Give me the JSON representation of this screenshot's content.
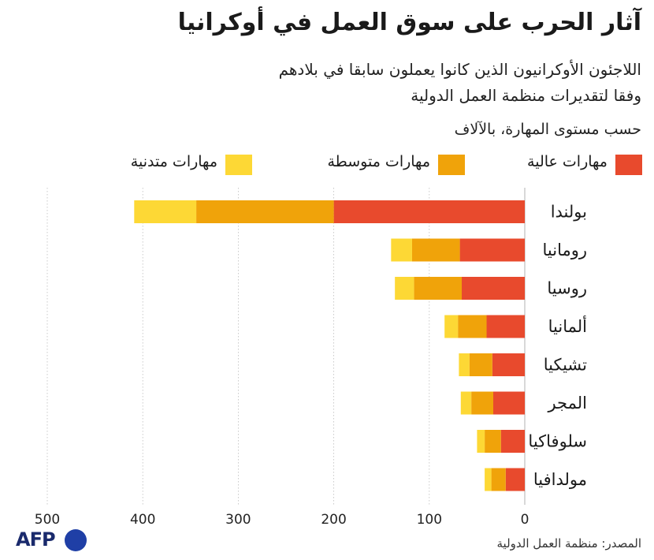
{
  "title": "آثار الحرب على سوق العمل في أوكرانيا",
  "subtitle_line1": "اللاجئون الأوكرانيون الذين كانوا يعملون سابقا في بلادهم",
  "subtitle_line2": "وفقا لتقديرات منظمة العمل الدولية",
  "unit": "حسب مستوى المهارة، بالآلاف",
  "source": "المصدر: منظمة العمل الدولية",
  "logo": "AFP",
  "colors": {
    "high": "#e84a2d",
    "medium": "#f0a30a",
    "low": "#fdd835",
    "grid": "#bdbdbd"
  },
  "chart_data": {
    "type": "bar",
    "orientation": "horizontal",
    "stacked": true,
    "x_direction": "right-to-left",
    "categories": [
      "بولندا",
      "رومانيا",
      "روسيا",
      "ألمانيا",
      "تشيكيا",
      "المجر",
      "سلوفاكيا",
      "مولدافيا"
    ],
    "series": [
      {
        "name": "مهارات عالية",
        "key": "high",
        "values": [
          200,
          68,
          66,
          40,
          34,
          33,
          25,
          20
        ]
      },
      {
        "name": "مهارات متوسطة",
        "key": "medium",
        "values": [
          144,
          50,
          50,
          30,
          24,
          23,
          17,
          15
        ]
      },
      {
        "name": "مهارات متدنية",
        "key": "low",
        "values": [
          65,
          22,
          20,
          14,
          11,
          11,
          8,
          7
        ]
      }
    ],
    "xlim": [
      0,
      500
    ],
    "xticks": [
      0,
      100,
      200,
      300,
      400,
      500
    ],
    "grid": true,
    "legend_position": "top"
  }
}
